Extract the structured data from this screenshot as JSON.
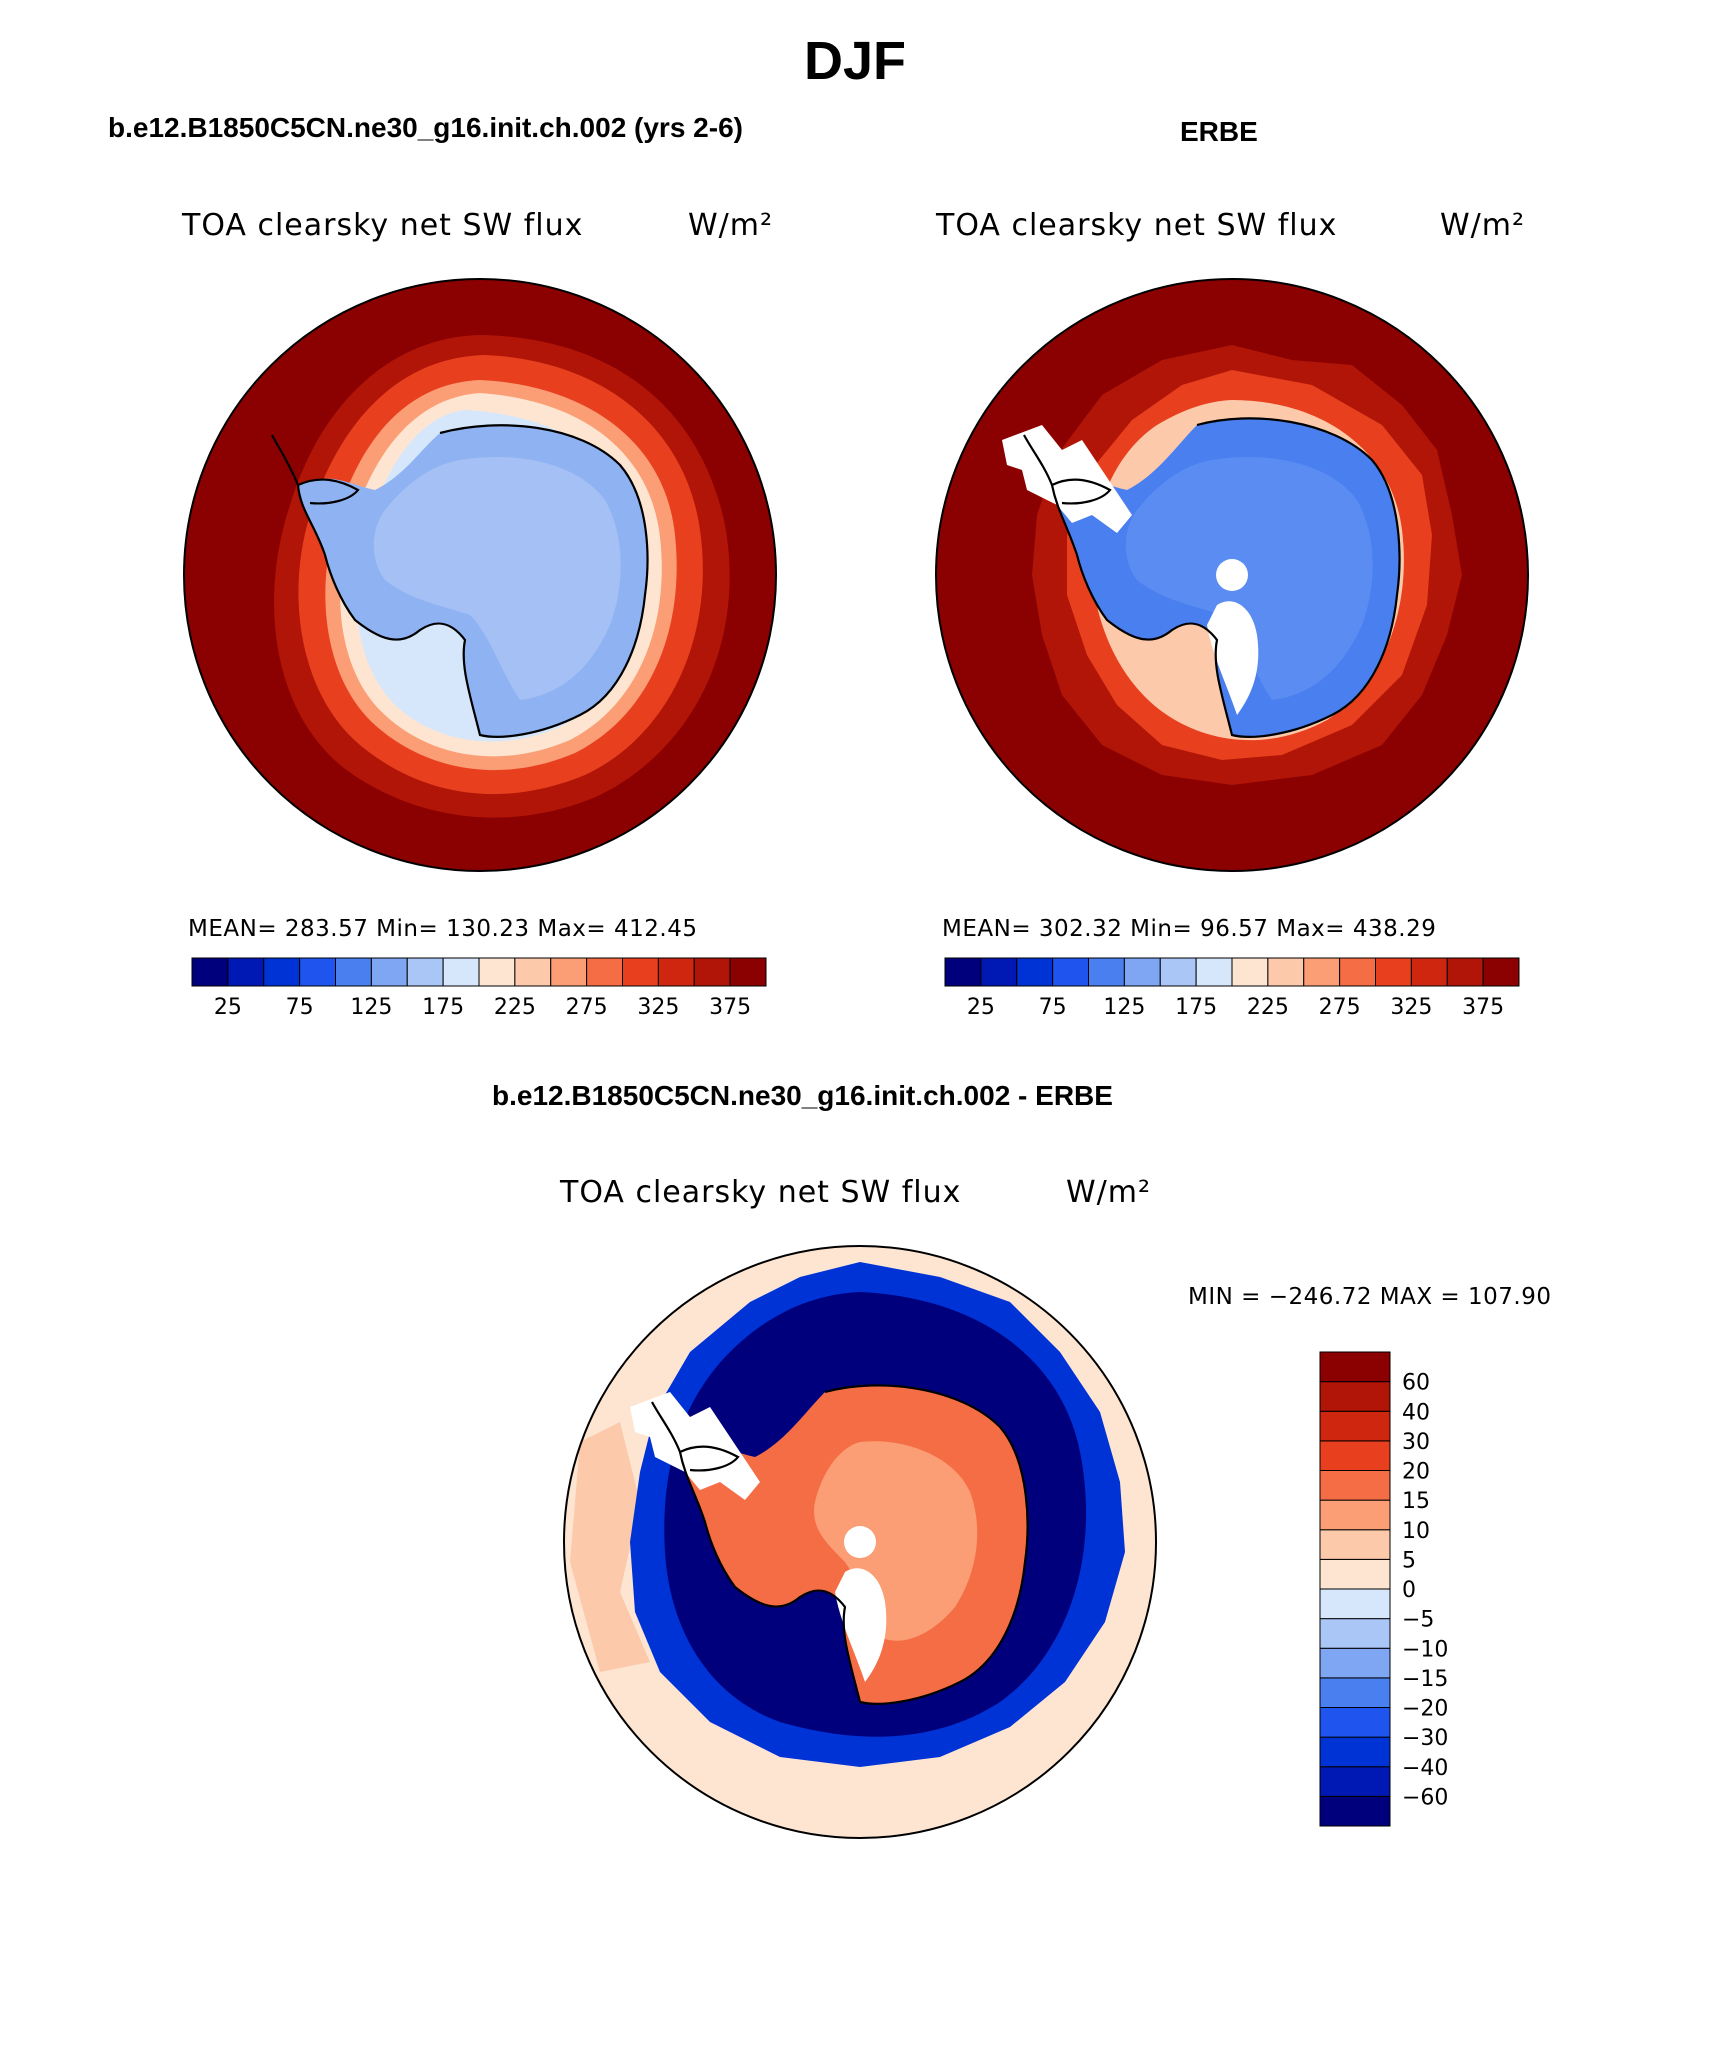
{
  "figure": {
    "title": "DJF"
  },
  "panels": {
    "model": {
      "case_title": "b.e12.B1850C5CN.ne30_g16.init.ch.002 (yrs 2-6)",
      "variable": "TOA clearsky net SW flux",
      "units": "W/m²",
      "stats": "MEAN= 283.57   Min= 130.23   Max= 412.45"
    },
    "obs": {
      "case_title": "ERBE",
      "variable": "TOA clearsky net SW flux",
      "units": "W/m²",
      "stats": "MEAN= 302.32   Min=  96.57   Max= 438.29"
    },
    "diff": {
      "case_title": "b.e12.B1850C5CN.ne30_g16.init.ch.002 - ERBE",
      "variable": "TOA clearsky net SW flux",
      "units": "W/m²",
      "stats": "MIN = −246.72 MAX = 107.90"
    }
  },
  "colorbars": {
    "absolute": {
      "colors": [
        "#00007d",
        "#0018b4",
        "#0033d6",
        "#1f55ee",
        "#4a7ff0",
        "#7ea6f3",
        "#aac6f6",
        "#d6e7fb",
        "#fde5d2",
        "#fcc9aa",
        "#fb9e75",
        "#f56d45",
        "#e8401e",
        "#cf2610",
        "#b01507",
        "#8b0000"
      ],
      "tick_labels": [
        "25",
        "75",
        "125",
        "175",
        "225",
        "275",
        "325",
        "375"
      ]
    },
    "difference": {
      "colors_bottom_to_top": [
        "#00007d",
        "#0018b4",
        "#0033d6",
        "#1f55ee",
        "#4a7ff0",
        "#7ea6f3",
        "#aac6f6",
        "#d6e7fb",
        "#fde5d2",
        "#fcc9aa",
        "#fb9e75",
        "#f56d45",
        "#e8401e",
        "#cf2610",
        "#b01507",
        "#8b0000"
      ],
      "tick_labels_top_to_bottom": [
        "60",
        "40",
        "30",
        "20",
        "15",
        "10",
        "5",
        "0",
        "−5",
        "−10",
        "−15",
        "−20",
        "−30",
        "−40",
        "−60"
      ]
    }
  },
  "map_colors": {
    "model": {
      "ocean_far": "#8b0000",
      "ring1": "#b01507",
      "ring2": "#e8401e",
      "ring3": "#fb9e75",
      "ring4": "#fde5d2",
      "sea_ice": "#d6e7fb",
      "continent": "#8fb3f2",
      "interior": "#a4c0f4"
    },
    "obs": {
      "ocean_far": "#8b0000",
      "ring1": "#b01507",
      "ring2": "#e8401e",
      "ring3": "#fcc9aa",
      "continent": "#4a7ff0",
      "interior": "#5a8cf1",
      "missing": "#ffffff"
    },
    "diff": {
      "ocean_far": "#fde5d2",
      "ocean_mid": "#fcc9aa",
      "ring_outer": "#0033d6",
      "ring_inner": "#00007d",
      "continent": "#f56d45",
      "interior": "#fb9e75",
      "missing": "#ffffff"
    }
  }
}
